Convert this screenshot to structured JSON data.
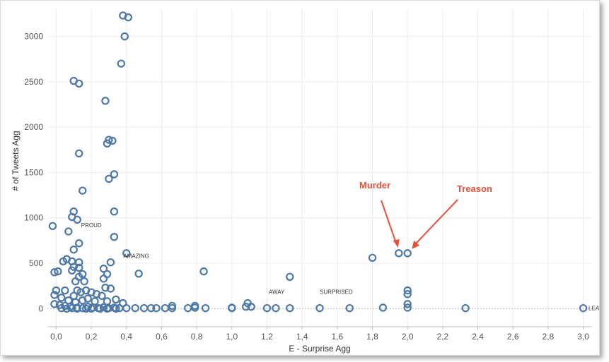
{
  "chart_data": {
    "type": "scatter",
    "xlabel": "E - Surprise Agg",
    "ylabel": "# of Tweets Agg",
    "xlim": [
      -0.05,
      3.05
    ],
    "ylim": [
      -200,
      3300
    ],
    "x_ticks": [
      "0,0",
      "0,2",
      "0,4",
      "0,6",
      "0,8",
      "1,0",
      "1,2",
      "1,4",
      "1,6",
      "1,8",
      "2,0",
      "2,2",
      "2,4",
      "2,6",
      "2,8",
      "3,0"
    ],
    "y_ticks": [
      "0",
      "500",
      "1000",
      "1500",
      "2000",
      "2500",
      "3000"
    ],
    "marker_color": "#4e79a7",
    "annotation_color": "#e8503a",
    "grid": true,
    "points": [
      [
        0.38,
        3230
      ],
      [
        0.41,
        3210
      ],
      [
        0.39,
        3000
      ],
      [
        0.37,
        2700
      ],
      [
        0.1,
        2510
      ],
      [
        0.13,
        2480
      ],
      [
        0.28,
        2290
      ],
      [
        0.3,
        1860
      ],
      [
        0.32,
        1850
      ],
      [
        0.29,
        1820
      ],
      [
        0.13,
        1710
      ],
      [
        0.33,
        1480
      ],
      [
        0.3,
        1430
      ],
      [
        0.15,
        1300
      ],
      [
        0.1,
        1070
      ],
      [
        0.33,
        1070
      ],
      [
        0.09,
        1010
      ],
      [
        0.12,
        980
      ],
      [
        -0.02,
        910
      ],
      [
        0.07,
        850
      ],
      [
        0.33,
        790
      ],
      [
        0.13,
        720
      ],
      [
        0.1,
        650
      ],
      [
        0.4,
        610
      ],
      [
        0.06,
        545
      ],
      [
        0.04,
        520
      ],
      [
        0.09,
        520
      ],
      [
        0.13,
        510
      ],
      [
        0.31,
        510
      ],
      [
        0.27,
        440
      ],
      [
        0.1,
        460
      ],
      [
        0.13,
        450
      ],
      [
        0.09,
        420
      ],
      [
        0.01,
        410
      ],
      [
        -0.01,
        400
      ],
      [
        0.47,
        385
      ],
      [
        0.15,
        380
      ],
      [
        0.29,
        380
      ],
      [
        0.13,
        350
      ],
      [
        0.27,
        330
      ],
      [
        0.11,
        300
      ],
      [
        0.16,
        300
      ],
      [
        0.28,
        230
      ],
      [
        0.31,
        220
      ],
      [
        0.0,
        200
      ],
      [
        0.05,
        200
      ],
      [
        0.12,
        200
      ],
      [
        0.17,
        200
      ],
      [
        0.14,
        180
      ],
      [
        0.2,
        180
      ],
      [
        0.23,
        160
      ],
      [
        -0.01,
        150
      ],
      [
        0.1,
        140
      ],
      [
        0.26,
        140
      ],
      [
        0.03,
        120
      ],
      [
        0.18,
        110
      ],
      [
        0.34,
        100
      ],
      [
        0.07,
        90
      ],
      [
        0.15,
        90
      ],
      [
        0.22,
        80
      ],
      [
        0.29,
        80
      ],
      [
        0.11,
        70
      ],
      [
        0.38,
        60
      ],
      [
        -0.01,
        50
      ],
      [
        0.02,
        40
      ],
      [
        0.05,
        30
      ],
      [
        0.08,
        20
      ],
      [
        0.12,
        10
      ],
      [
        0.15,
        5
      ],
      [
        0.18,
        20
      ],
      [
        0.21,
        10
      ],
      [
        0.24,
        5
      ],
      [
        0.27,
        15
      ],
      [
        0.3,
        5
      ],
      [
        0.33,
        10
      ],
      [
        0.36,
        5
      ],
      [
        0.4,
        5
      ],
      [
        0.03,
        5
      ],
      [
        0.06,
        0
      ],
      [
        0.09,
        5
      ],
      [
        0.12,
        0
      ],
      [
        0.17,
        0
      ],
      [
        0.2,
        0
      ],
      [
        0.25,
        0
      ],
      [
        0.29,
        0
      ],
      [
        0.34,
        0
      ],
      [
        0.45,
        5
      ],
      [
        0.5,
        5
      ],
      [
        0.54,
        5
      ],
      [
        0.57,
        5
      ],
      [
        0.62,
        5
      ],
      [
        0.66,
        5
      ],
      [
        0.66,
        30
      ],
      [
        0.75,
        5
      ],
      [
        0.79,
        10
      ],
      [
        0.79,
        30
      ],
      [
        0.84,
        410
      ],
      [
        0.85,
        5
      ],
      [
        1.0,
        5
      ],
      [
        1.0,
        10
      ],
      [
        1.08,
        20
      ],
      [
        1.09,
        60
      ],
      [
        1.11,
        20
      ],
      [
        1.2,
        5
      ],
      [
        1.25,
        5
      ],
      [
        1.33,
        350
      ],
      [
        1.33,
        5
      ],
      [
        1.5,
        5
      ],
      [
        1.67,
        5
      ],
      [
        1.8,
        560
      ],
      [
        1.86,
        10
      ],
      [
        1.95,
        610
      ],
      [
        2.0,
        610
      ],
      [
        2.0,
        200
      ],
      [
        2.0,
        160
      ],
      [
        2.0,
        50
      ],
      [
        2.0,
        10
      ],
      [
        2.33,
        5
      ],
      [
        3.0,
        5
      ]
    ],
    "point_labels": [
      {
        "text": "PROUD",
        "x": 0.11,
        "y": 850
      },
      {
        "text": "AMAZING",
        "x": 0.35,
        "y": 510
      },
      {
        "text": "AWAY",
        "x": 1.21,
        "y": 115
      },
      {
        "text": "SURPRISED",
        "x": 1.5,
        "y": 115
      },
      {
        "text": "LEAV",
        "x": 3.03,
        "y": 5
      }
    ],
    "annotations": [
      {
        "text": "Murder",
        "x": 1.95,
        "y": 610
      },
      {
        "text": "Treason",
        "x": 2.0,
        "y": 610
      }
    ]
  }
}
